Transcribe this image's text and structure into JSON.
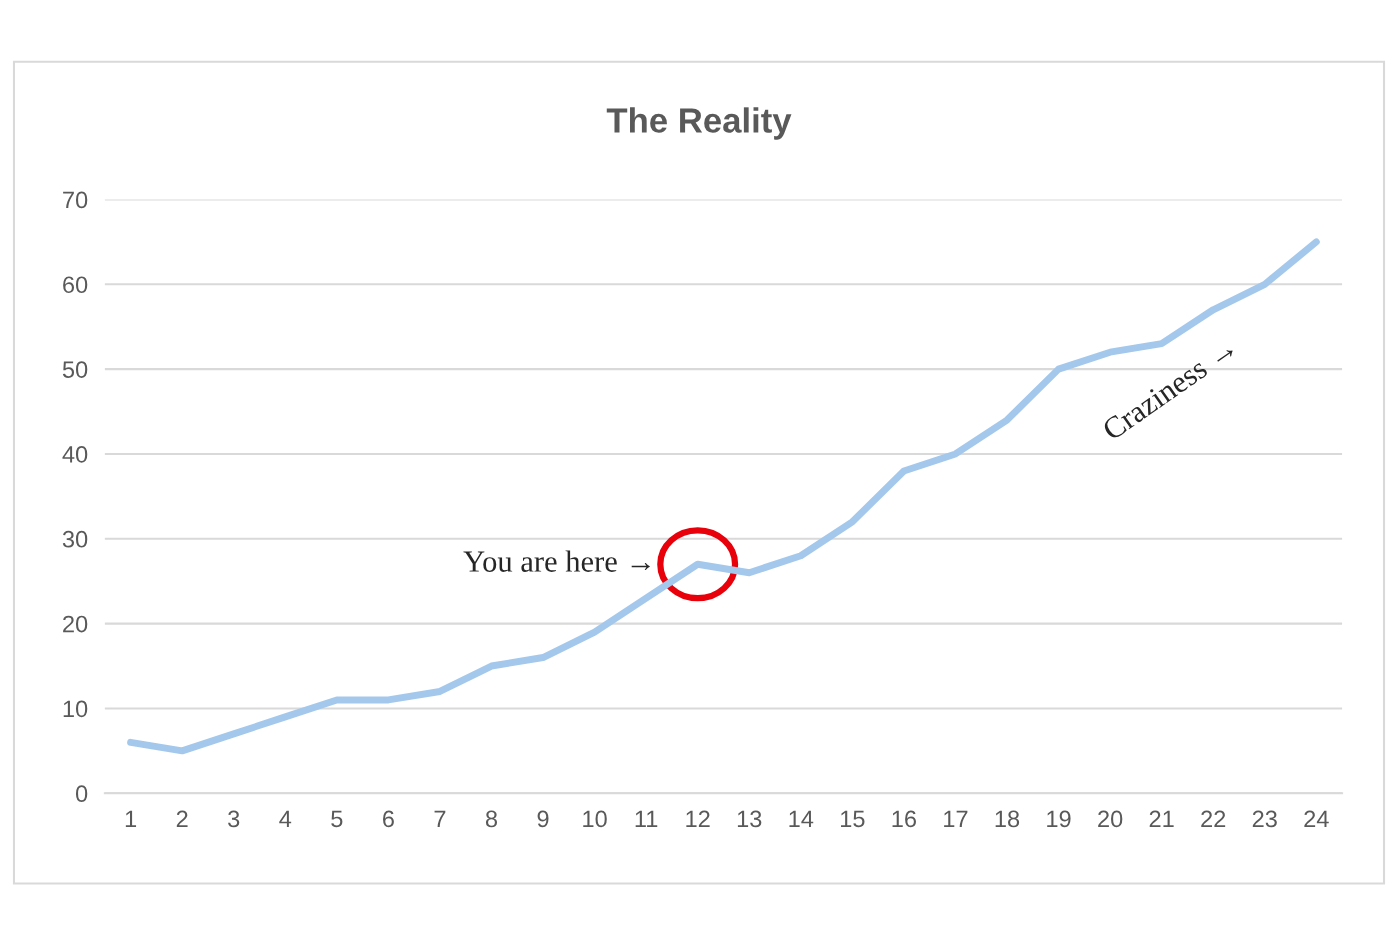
{
  "chart_data": {
    "type": "line",
    "title": "The Reality",
    "categories": [
      "1",
      "2",
      "3",
      "4",
      "5",
      "6",
      "7",
      "8",
      "9",
      "10",
      "11",
      "12",
      "13",
      "14",
      "15",
      "16",
      "17",
      "18",
      "19",
      "20",
      "21",
      "22",
      "23",
      "24"
    ],
    "series": [
      {
        "color": "#a4c8ec",
        "values": [
          6,
          5,
          7,
          9,
          11,
          11,
          12,
          15,
          16,
          19,
          23,
          27,
          26,
          28,
          32,
          38,
          40,
          44,
          50,
          52,
          53,
          57,
          60,
          65
        ]
      }
    ],
    "ylim": [
      0,
      70
    ],
    "yticks": [
      0,
      10,
      20,
      30,
      40,
      50,
      60,
      70
    ],
    "grid": "y",
    "legend": false,
    "marker": "none",
    "line_style": "solid",
    "annotations": [
      {
        "text": "You are here →",
        "x": "12",
        "y": 27
      },
      "Craziness →"
    ]
  }
}
